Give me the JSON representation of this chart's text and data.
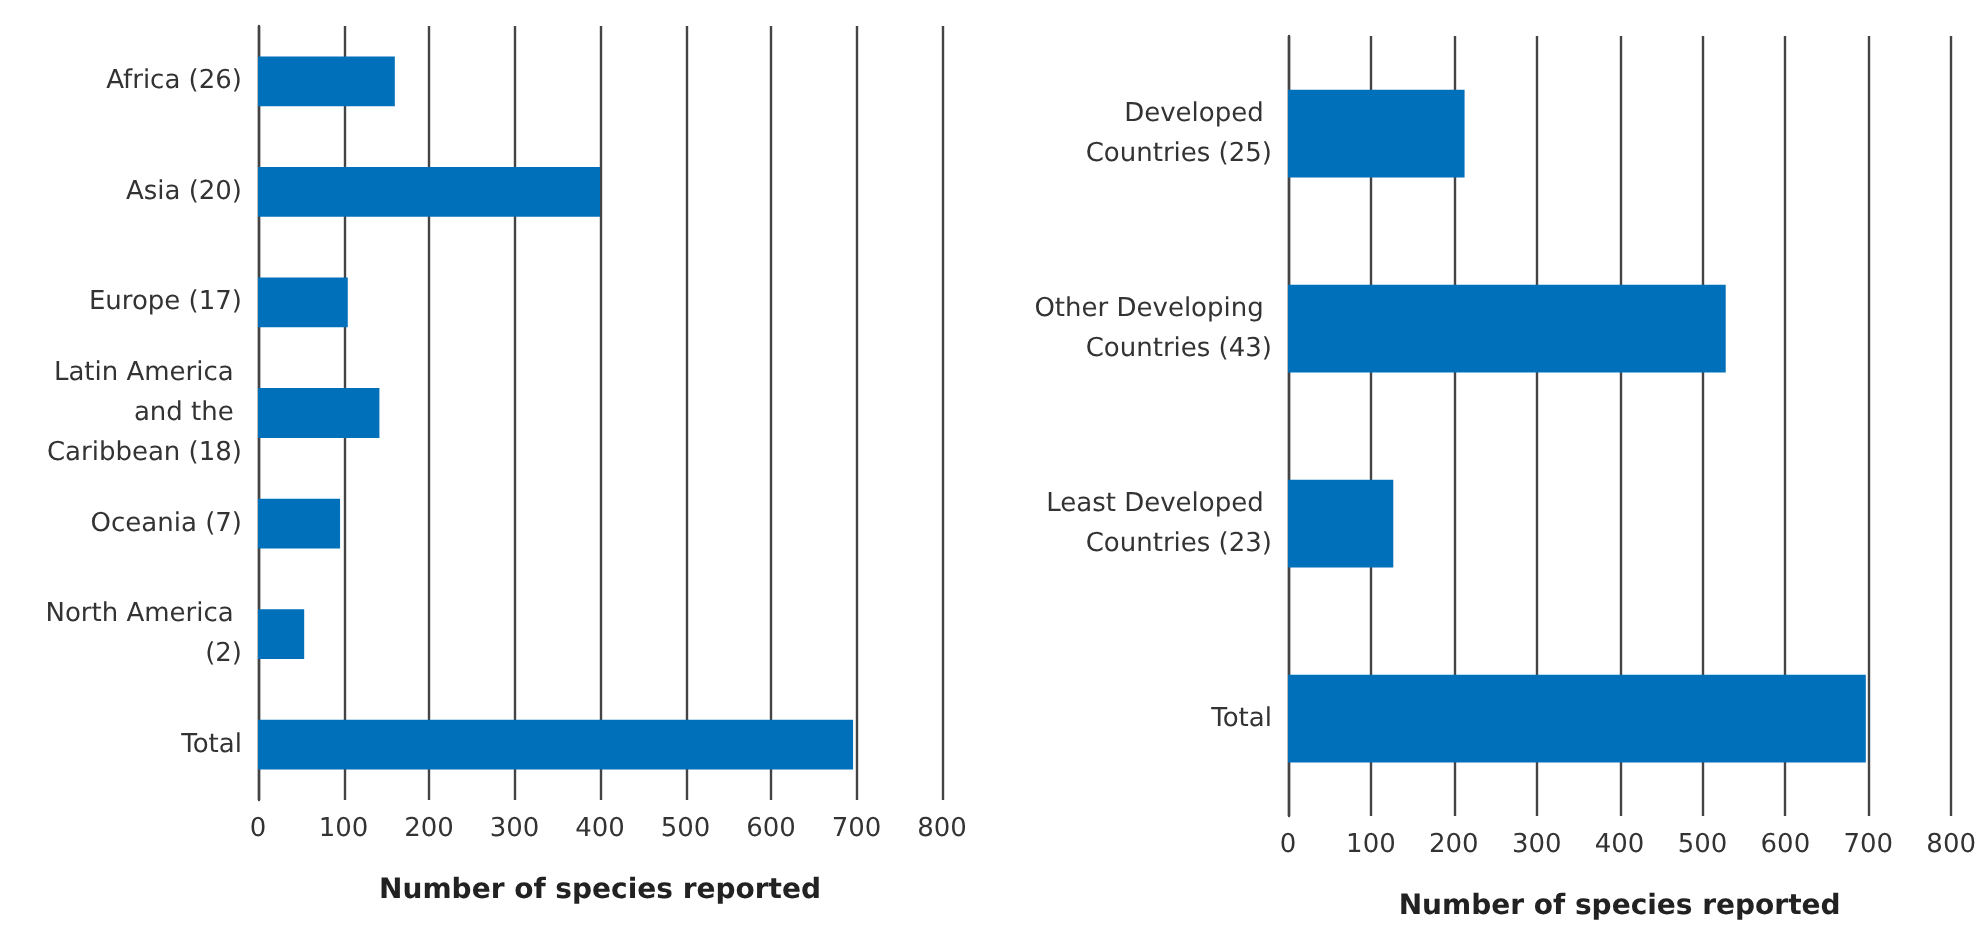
{
  "chart_data": [
    {
      "type": "bar",
      "orientation": "horizontal",
      "xlabel": "Number of species reported",
      "categories": [
        "Africa (26)",
        "Asia (20)",
        "Europe (17)",
        "Latin America and the Caribbean (18)",
        "Oceania (7)",
        "North America (2)",
        "Total"
      ],
      "values": [
        160,
        400,
        105,
        142,
        96,
        54,
        696
      ],
      "color": "#0070ba",
      "xlim": [
        0,
        800
      ],
      "xticks": [
        0,
        100,
        200,
        300,
        400,
        500,
        600,
        700,
        800
      ],
      "grid": "x"
    },
    {
      "type": "bar",
      "orientation": "horizontal",
      "xlabel": "Number of species reported",
      "categories": [
        "Developed Countries (25)",
        "Other Developing Countries (43)",
        "Least Developed Countries (23)",
        "Total"
      ],
      "values": [
        213,
        528,
        127,
        697
      ],
      "color": "#0070ba",
      "xlim": [
        0,
        800
      ],
      "xticks": [
        0,
        100,
        200,
        300,
        400,
        500,
        600,
        700,
        800
      ],
      "grid": "x"
    }
  ]
}
